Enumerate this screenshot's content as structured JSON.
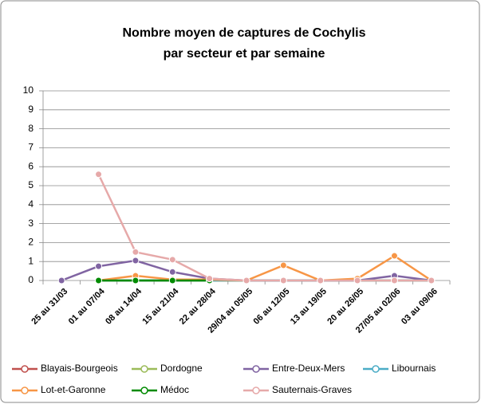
{
  "chart_data": {
    "type": "line",
    "title": [
      "Nombre moyen de captures de Cochylis",
      "par secteur et par semaine"
    ],
    "categories": [
      "25 au 31/03",
      "01 au 07/04",
      "08 au 14/04",
      "15 au 21/04",
      "22 au 28/04",
      "29/04 au 05/05",
      "06 au 12/05",
      "13 au 19/05",
      "20 au 26/05",
      "27/05 au 02/06",
      "03 au 09/06"
    ],
    "series": [
      {
        "name": "Blayais-Bourgeois",
        "color": "#c0504d",
        "values": [
          null,
          0,
          0,
          0,
          0,
          0,
          0,
          0,
          0,
          0,
          0
        ]
      },
      {
        "name": "Dordogne",
        "color": "#9bbb59",
        "values": [
          null,
          0,
          0,
          0,
          0,
          0,
          0,
          0,
          0,
          0,
          0
        ]
      },
      {
        "name": "Entre-Deux-Mers",
        "color": "#8064a2",
        "values": [
          0,
          0.75,
          1.05,
          0.45,
          0.1,
          0,
          0,
          0,
          0,
          0.25,
          0
        ]
      },
      {
        "name": "Libournais",
        "color": "#4bacc6",
        "values": [
          null,
          0,
          0,
          0,
          0,
          0,
          0,
          0,
          0,
          0,
          0
        ]
      },
      {
        "name": "Lot-et-Garonne",
        "color": "#f79646",
        "values": [
          null,
          0,
          0.25,
          0.05,
          0.05,
          0,
          0.8,
          0,
          0.1,
          1.3,
          0
        ]
      },
      {
        "name": "Médoc",
        "color": "#008a00",
        "values": [
          null,
          0,
          0,
          0,
          0,
          null,
          null,
          null,
          null,
          null,
          null
        ]
      },
      {
        "name": "Sauternais-Graves",
        "color": "#e6a9a9",
        "values": [
          null,
          5.6,
          1.5,
          1.1,
          0.1,
          0,
          0,
          0,
          0,
          0,
          0
        ]
      }
    ],
    "ylim": [
      0,
      10
    ],
    "yticks": [
      0,
      1,
      2,
      3,
      4,
      5,
      6,
      7,
      8,
      9,
      10
    ],
    "grid": true,
    "legend": "bottom"
  }
}
